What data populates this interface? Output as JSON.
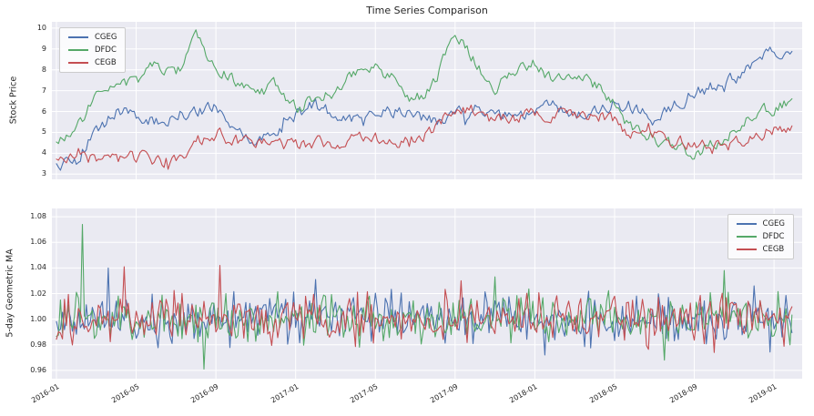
{
  "style": {
    "background": "#eaeaf2",
    "grid_color": "#ffffff",
    "text_color": "#262626"
  },
  "x_axis": {
    "tick_labels": [
      "2016-01",
      "2016-05",
      "2016-09",
      "2017-01",
      "2017-05",
      "2017-09",
      "2018-01",
      "2018-05",
      "2018-09",
      "2019-01"
    ],
    "tick_months": [
      0,
      4,
      8,
      12,
      16,
      20,
      24,
      28,
      32,
      36
    ],
    "months_span": 37,
    "x_unit": "months since 2016-01"
  },
  "chart_data": [
    {
      "type": "line",
      "title": "Time Series Comparison",
      "ylabel": "Stock Price",
      "ylim": [
        2.75,
        10.3
      ],
      "ytick_values": [
        3,
        4,
        5,
        6,
        7,
        8,
        9,
        10
      ],
      "ytick_labels": [
        "3",
        "4",
        "5",
        "6",
        "7",
        "8",
        "9",
        "10"
      ],
      "legend_position": "top-left",
      "grid": true,
      "anchor_step_months": 1,
      "series": [
        {
          "name": "CGEG",
          "color": "#4c72b0",
          "seed": 5,
          "anchors": [
            3.4,
            3.7,
            5.0,
            6.1,
            5.8,
            5.5,
            5.8,
            6.1,
            6.1,
            5.3,
            4.6,
            5.0,
            5.9,
            6.3,
            5.8,
            5.6,
            5.9,
            6.1,
            5.7,
            5.5,
            5.8,
            6.2,
            5.9,
            5.8,
            6.0,
            6.2,
            5.9,
            6.1,
            6.4,
            6.2,
            5.6,
            6.4,
            6.9,
            7.2,
            7.6,
            8.2,
            8.9,
            8.8
          ]
        },
        {
          "name": "DFDC",
          "color": "#55a868",
          "seed": 9,
          "anchors": [
            4.7,
            5.1,
            6.9,
            7.0,
            7.4,
            8.4,
            7.6,
            9.6,
            8.2,
            7.4,
            6.8,
            7.3,
            6.2,
            6.5,
            7.0,
            7.8,
            8.3,
            7.4,
            6.5,
            7.4,
            9.7,
            8.4,
            7.2,
            7.9,
            8.3,
            7.5,
            7.9,
            7.3,
            6.4,
            5.0,
            4.8,
            4.4,
            4.0,
            4.4,
            5.1,
            6.0,
            6.2,
            6.4
          ]
        },
        {
          "name": "CEGB",
          "color": "#c44e52",
          "seed": 3,
          "anchors": [
            3.6,
            3.9,
            3.8,
            3.7,
            3.8,
            3.6,
            3.7,
            4.5,
            5.0,
            4.6,
            4.5,
            4.4,
            4.4,
            4.5,
            4.4,
            4.6,
            4.7,
            4.6,
            4.8,
            5.2,
            6.1,
            6.0,
            5.6,
            5.7,
            5.9,
            5.8,
            6.0,
            5.8,
            5.5,
            4.8,
            5.0,
            4.6,
            4.3,
            4.2,
            4.5,
            4.7,
            5.2,
            5.0
          ]
        }
      ]
    },
    {
      "type": "line",
      "title": "",
      "ylabel": "5-day Geometric MA",
      "ylim": [
        0.9535,
        1.0865
      ],
      "ytick_values": [
        0.96,
        0.98,
        1.0,
        1.02,
        1.04,
        1.06,
        1.08
      ],
      "ytick_labels": [
        "0.96",
        "0.98",
        "1.00",
        "1.02",
        "1.04",
        "1.06",
        "1.08"
      ],
      "legend_position": "top-right",
      "grid": true,
      "series": [
        {
          "name": "CGEG",
          "color": "#4c72b0",
          "seed": 17,
          "mean": 1.0,
          "noise_std": 0.0095,
          "outliers": [
            {
              "m": 2.6,
              "v": 1.04
            },
            {
              "m": 13.0,
              "v": 1.031
            },
            {
              "m": 24.5,
              "v": 0.972
            },
            {
              "m": 35.0,
              "v": 1.026
            }
          ]
        },
        {
          "name": "DFDC",
          "color": "#55a868",
          "seed": 23,
          "mean": 1.0,
          "noise_std": 0.0095,
          "outliers": [
            {
              "m": 1.3,
              "v": 1.074
            },
            {
              "m": 7.4,
              "v": 0.961
            },
            {
              "m": 22.0,
              "v": 1.033
            },
            {
              "m": 30.5,
              "v": 0.968
            },
            {
              "m": 33.5,
              "v": 1.038
            }
          ]
        },
        {
          "name": "CEGB",
          "color": "#c44e52",
          "seed": 29,
          "mean": 1.0,
          "noise_std": 0.0095,
          "outliers": [
            {
              "m": 3.4,
              "v": 1.041
            },
            {
              "m": 8.2,
              "v": 1.042
            },
            {
              "m": 20.3,
              "v": 1.03
            },
            {
              "m": 33.0,
              "v": 0.974
            }
          ]
        }
      ]
    }
  ]
}
